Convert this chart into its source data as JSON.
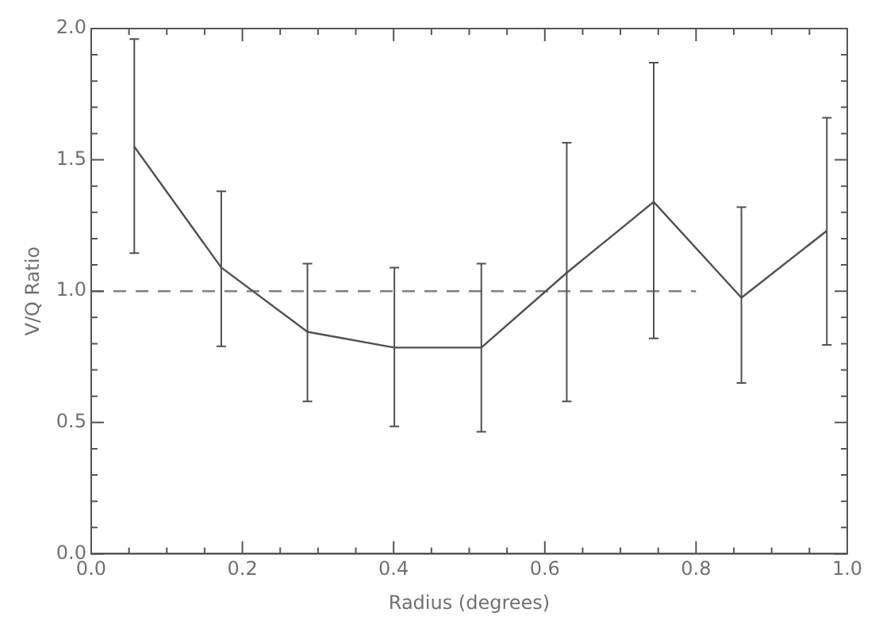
{
  "chart_data": {
    "type": "line",
    "xlabel": "Radius (degrees)",
    "ylabel": "V/Q Ratio",
    "xlim": [
      0,
      1
    ],
    "ylim": [
      0,
      2
    ],
    "xticks": [
      {
        "value": 0,
        "label": "0.0"
      },
      {
        "value": 0.05,
        "label": null
      },
      {
        "value": 0.1,
        "label": null
      },
      {
        "value": 0.15,
        "label": null
      },
      {
        "value": 0.2,
        "label": "0.2"
      },
      {
        "value": 0.25,
        "label": null
      },
      {
        "value": 0.3,
        "label": null
      },
      {
        "value": 0.35,
        "label": null
      },
      {
        "value": 0.4,
        "label": "0.4"
      },
      {
        "value": 0.45,
        "label": null
      },
      {
        "value": 0.5,
        "label": null
      },
      {
        "value": 0.55,
        "label": null
      },
      {
        "value": 0.6,
        "label": "0.6"
      },
      {
        "value": 0.65,
        "label": null
      },
      {
        "value": 0.7,
        "label": null
      },
      {
        "value": 0.75,
        "label": null
      },
      {
        "value": 0.8,
        "label": "0.8"
      },
      {
        "value": 0.85,
        "label": null
      },
      {
        "value": 0.9,
        "label": null
      },
      {
        "value": 0.95,
        "label": null
      },
      {
        "value": 1,
        "label": "1.0"
      }
    ],
    "yticks": [
      {
        "value": 0,
        "label": "0.0"
      },
      {
        "value": 0.1,
        "label": null
      },
      {
        "value": 0.2,
        "label": null
      },
      {
        "value": 0.3,
        "label": null
      },
      {
        "value": 0.4,
        "label": null
      },
      {
        "value": 0.5,
        "label": "0.5"
      },
      {
        "value": 0.6,
        "label": null
      },
      {
        "value": 0.7,
        "label": null
      },
      {
        "value": 0.8,
        "label": null
      },
      {
        "value": 0.9,
        "label": null
      },
      {
        "value": 1,
        "label": "1.0"
      },
      {
        "value": 1.1,
        "label": null
      },
      {
        "value": 1.2,
        "label": null
      },
      {
        "value": 1.3,
        "label": null
      },
      {
        "value": 1.4,
        "label": null
      },
      {
        "value": 1.5,
        "label": "1.5"
      },
      {
        "value": 1.6,
        "label": null
      },
      {
        "value": 1.7,
        "label": null
      },
      {
        "value": 1.8,
        "label": null
      },
      {
        "value": 1.9,
        "label": null
      },
      {
        "value": 2,
        "label": "2.0"
      }
    ],
    "grid": false,
    "legend": false,
    "marker": "none",
    "series": [
      {
        "color": "#505050",
        "line_style": "solid",
        "x": [
          0.057,
          0.172,
          0.286,
          0.401,
          0.516,
          0.629,
          0.744,
          0.86,
          0.973
        ],
        "values": [
          1.55,
          1.09,
          0.845,
          0.785,
          0.785,
          1.07,
          1.34,
          0.975,
          1.23
        ],
        "errors": [
          [
            1.145,
            1.96
          ],
          [
            0.79,
            1.38
          ],
          [
            0.58,
            1.105
          ],
          [
            0.485,
            1.09
          ],
          [
            0.465,
            1.105
          ],
          [
            0.58,
            1.565
          ],
          [
            0.82,
            1.87
          ],
          [
            0.65,
            1.32
          ],
          [
            0.795,
            1.66
          ]
        ]
      },
      {
        "color": "#808080",
        "line_style": "dashed",
        "x": [
          0,
          0.8
        ],
        "values": [
          1,
          1
        ]
      }
    ]
  }
}
